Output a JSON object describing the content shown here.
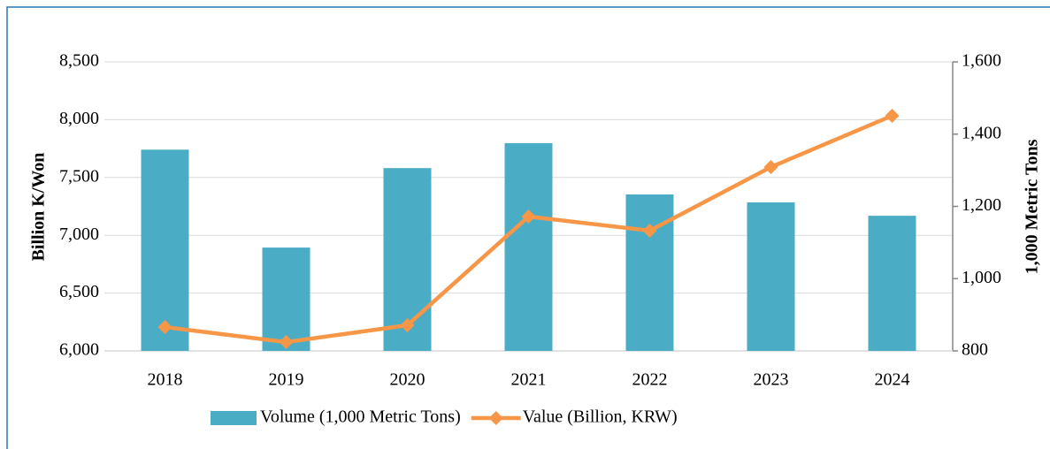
{
  "chart_data": {
    "type": "bar_line",
    "categories": [
      "2018",
      "2019",
      "2020",
      "2021",
      "2022",
      "2023",
      "2024"
    ],
    "series": [
      {
        "name": "Volume (1,000 Metric Tons)",
        "type": "bar",
        "axis": "y2",
        "color": "#4bacc6",
        "values": [
          1357,
          1086,
          1306,
          1375,
          1233,
          1211,
          1174
        ]
      },
      {
        "name": "Value (Billion, KRW)",
        "type": "line",
        "axis": "y",
        "color": "#f79646",
        "values": [
          6206,
          6076,
          6222,
          7162,
          7040,
          7590,
          8034
        ]
      }
    ],
    "ylabel": "Billion K/Won",
    "y2label": "1,000 Metric Tons",
    "ylim": [
      6000,
      8500
    ],
    "yticks": [
      {
        "value": 6000,
        "label": "6,000"
      },
      {
        "value": 6500,
        "label": "6,500"
      },
      {
        "value": 7000,
        "label": "7,000"
      },
      {
        "value": 7500,
        "label": "7,500"
      },
      {
        "value": 8000,
        "label": "8,000"
      },
      {
        "value": 8500,
        "label": "8,500"
      }
    ],
    "y2lim": [
      800,
      1600
    ],
    "y2ticks": [
      800,
      {
        "value": 1000,
        "label": "1,000"
      },
      {
        "value": 1200,
        "label": "1,200"
      },
      {
        "value": 1400,
        "label": "1,400"
      },
      {
        "value": 1600,
        "label": "1,600"
      }
    ],
    "grid": true,
    "legend": "bottom"
  }
}
